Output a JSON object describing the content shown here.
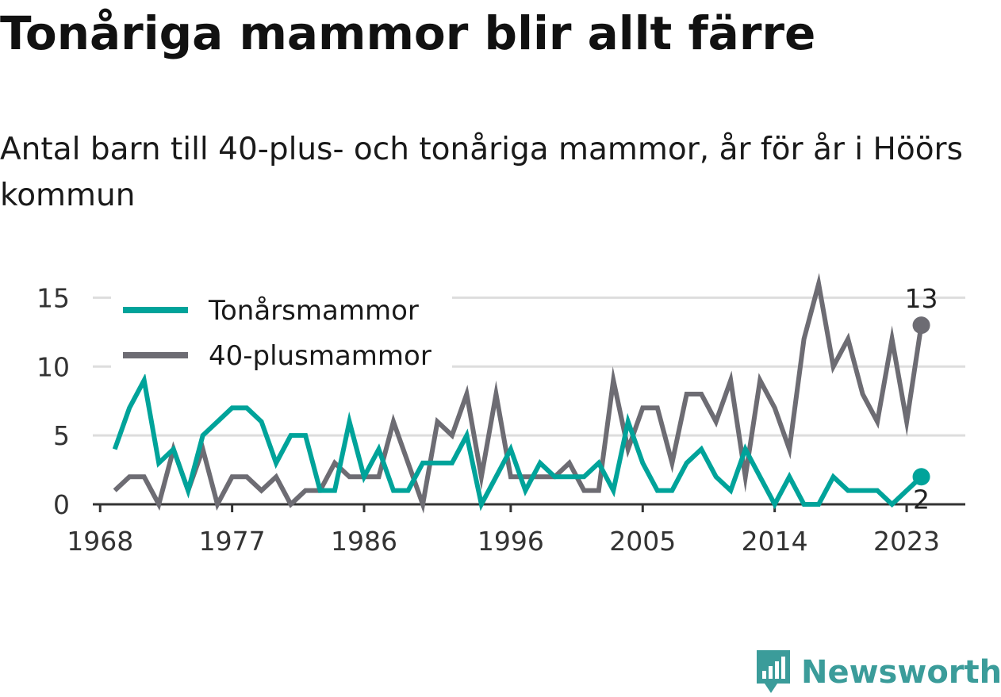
{
  "title": "Tonåriga mammor blir allt färre",
  "subtitle": "Antal barn till 40-plus- och tonåriga mammor, år för år i Höörs kommun",
  "brand": {
    "name": "Newsworthy",
    "color": "#3b9c9a",
    "icon": "newsworthy-logo-icon"
  },
  "colors": {
    "teen": "#00a39a",
    "forty": "#6d6c73",
    "grid": "#dddddd",
    "axis": "#333333"
  },
  "chart_data": {
    "type": "line",
    "x": [
      1969,
      1970,
      1971,
      1972,
      1973,
      1974,
      1975,
      1976,
      1977,
      1978,
      1979,
      1980,
      1981,
      1982,
      1983,
      1984,
      1985,
      1986,
      1987,
      1988,
      1989,
      1990,
      1991,
      1992,
      1993,
      1994,
      1995,
      1996,
      1997,
      1998,
      1999,
      2000,
      2001,
      2002,
      2003,
      2004,
      2005,
      2006,
      2007,
      2008,
      2009,
      2010,
      2011,
      2012,
      2013,
      2014,
      2015,
      2016,
      2017,
      2018,
      2019,
      2020,
      2021,
      2022,
      2023,
      2024
    ],
    "xticks": [
      1968,
      1977,
      1986,
      1996,
      2005,
      2014,
      2023
    ],
    "yticks": [
      0,
      5,
      10,
      15
    ],
    "ylim": [
      0,
      16
    ],
    "xlim": [
      1967.5,
      2027
    ],
    "grid": "horizontal",
    "legend_position": "top-left",
    "series": [
      {
        "name": "Tonårsmammor",
        "color": "#00a39a",
        "values": [
          4,
          7,
          9,
          3,
          4,
          1,
          5,
          6,
          7,
          7,
          6,
          3,
          5,
          5,
          1,
          1,
          6,
          2,
          4,
          1,
          1,
          3,
          3,
          3,
          5,
          0,
          2,
          4,
          1,
          3,
          2,
          2,
          2,
          3,
          1,
          6,
          3,
          1,
          1,
          3,
          4,
          2,
          1,
          4,
          2,
          0,
          2,
          0,
          0,
          2,
          1,
          1,
          1,
          0,
          1,
          2
        ],
        "end_label": "2"
      },
      {
        "name": "40-plusmammor",
        "color": "#6d6c73",
        "values": [
          1,
          2,
          2,
          0,
          4,
          1,
          4,
          0,
          2,
          2,
          1,
          2,
          0,
          1,
          1,
          3,
          2,
          2,
          2,
          6,
          3,
          0,
          6,
          5,
          8,
          2,
          8,
          2,
          2,
          2,
          2,
          3,
          1,
          1,
          9,
          4,
          7,
          7,
          3,
          8,
          8,
          6,
          9,
          2,
          9,
          7,
          4,
          12,
          16,
          10,
          12,
          8,
          6,
          12,
          6,
          13
        ],
        "end_label": "13"
      }
    ]
  }
}
